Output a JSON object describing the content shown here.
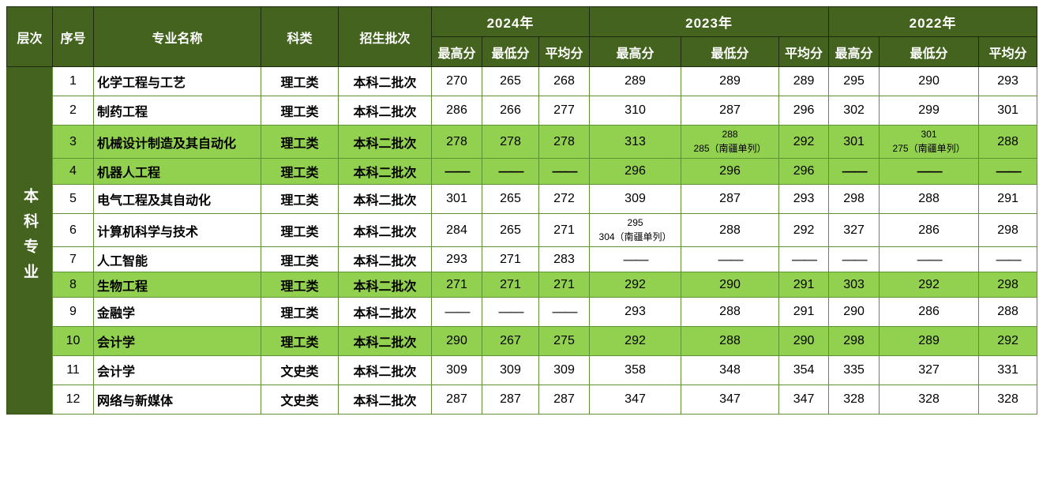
{
  "colors": {
    "header_background": "#44631f",
    "highlight_row": "#92d050",
    "grid_line": "#5e9132",
    "header_grid_line": "#1e2a10",
    "header_text": "#ffffff",
    "body_text": "#000000",
    "dash_gray": "#4d4d4d"
  },
  "table": {
    "level_label": "本科专业",
    "headers": {
      "level": "层次",
      "index": "序号",
      "major": "专业名称",
      "category": "科类",
      "batch": "招生批次",
      "years": [
        "2024年",
        "2023年",
        "2022年"
      ],
      "score_columns": [
        "最高分",
        "最低分",
        "平均分"
      ]
    },
    "rows": [
      {
        "index": "1",
        "major": "化学工程与工艺",
        "category": "理工类",
        "batch": "本科二批次",
        "highlight": false,
        "scores": [
          "270",
          "265",
          "268",
          "289",
          "289",
          "289",
          "295",
          "290",
          "293"
        ]
      },
      {
        "index": "2",
        "major": "制药工程",
        "category": "理工类",
        "batch": "本科二批次",
        "highlight": false,
        "scores": [
          "286",
          "266",
          "277",
          "310",
          "287",
          "296",
          "302",
          "299",
          "301"
        ]
      },
      {
        "index": "3",
        "major": "机械设计制造及其自动化",
        "category": "理工类",
        "batch": "本科二批次",
        "highlight": true,
        "scores": [
          "278",
          "278",
          "278",
          "313",
          "288\n285（南疆单列）",
          "292",
          "301",
          "301\n275（南疆单列）",
          "288"
        ]
      },
      {
        "index": "4",
        "major": "机器人工程",
        "category": "理工类",
        "batch": "本科二批次",
        "highlight": true,
        "scores": [
          "——",
          "——",
          "——",
          "296",
          "296",
          "296",
          "——",
          "——",
          "——"
        ]
      },
      {
        "index": "5",
        "major": "电气工程及其自动化",
        "category": "理工类",
        "batch": "本科二批次",
        "highlight": false,
        "scores": [
          "301",
          "265",
          "272",
          "309",
          "287",
          "293",
          "298",
          "288",
          "291"
        ]
      },
      {
        "index": "6",
        "major": "计算机科学与技术",
        "category": "理工类",
        "batch": "本科二批次",
        "highlight": false,
        "scores": [
          "284",
          "265",
          "271",
          "295\n304（南疆单列）",
          "288",
          "292",
          "327",
          "286",
          "298"
        ]
      },
      {
        "index": "7",
        "major": "人工智能",
        "category": "理工类",
        "batch": "本科二批次",
        "highlight": false,
        "scores": [
          "293",
          "271",
          "283",
          "——",
          "——",
          "——",
          "——",
          "——",
          "——"
        ]
      },
      {
        "index": "8",
        "major": "生物工程",
        "category": "理工类",
        "batch": "本科二批次",
        "highlight": true,
        "scores": [
          "271",
          "271",
          "271",
          "292",
          "290",
          "291",
          "303",
          "292",
          "298"
        ]
      },
      {
        "index": "9",
        "major": "金融学",
        "category": "理工类",
        "batch": "本科二批次",
        "highlight": false,
        "scores": [
          "——",
          "——",
          "——",
          "293",
          "288",
          "291",
          "290",
          "286",
          "288"
        ]
      },
      {
        "index": "10",
        "major": "会计学",
        "category": "理工类",
        "batch": "本科二批次",
        "highlight": true,
        "scores": [
          "290",
          "267",
          "275",
          "292",
          "288",
          "290",
          "298",
          "289",
          "292"
        ]
      },
      {
        "index": "11",
        "major": "会计学",
        "category": "文史类",
        "batch": "本科二批次",
        "highlight": false,
        "scores": [
          "309",
          "309",
          "309",
          "358",
          "348",
          "354",
          "335",
          "327",
          "331"
        ]
      },
      {
        "index": "12",
        "major": "网络与新媒体",
        "category": "文史类",
        "batch": "本科二批次",
        "highlight": false,
        "scores": [
          "287",
          "287",
          "287",
          "347",
          "347",
          "347",
          "328",
          "328",
          "328"
        ]
      }
    ]
  }
}
